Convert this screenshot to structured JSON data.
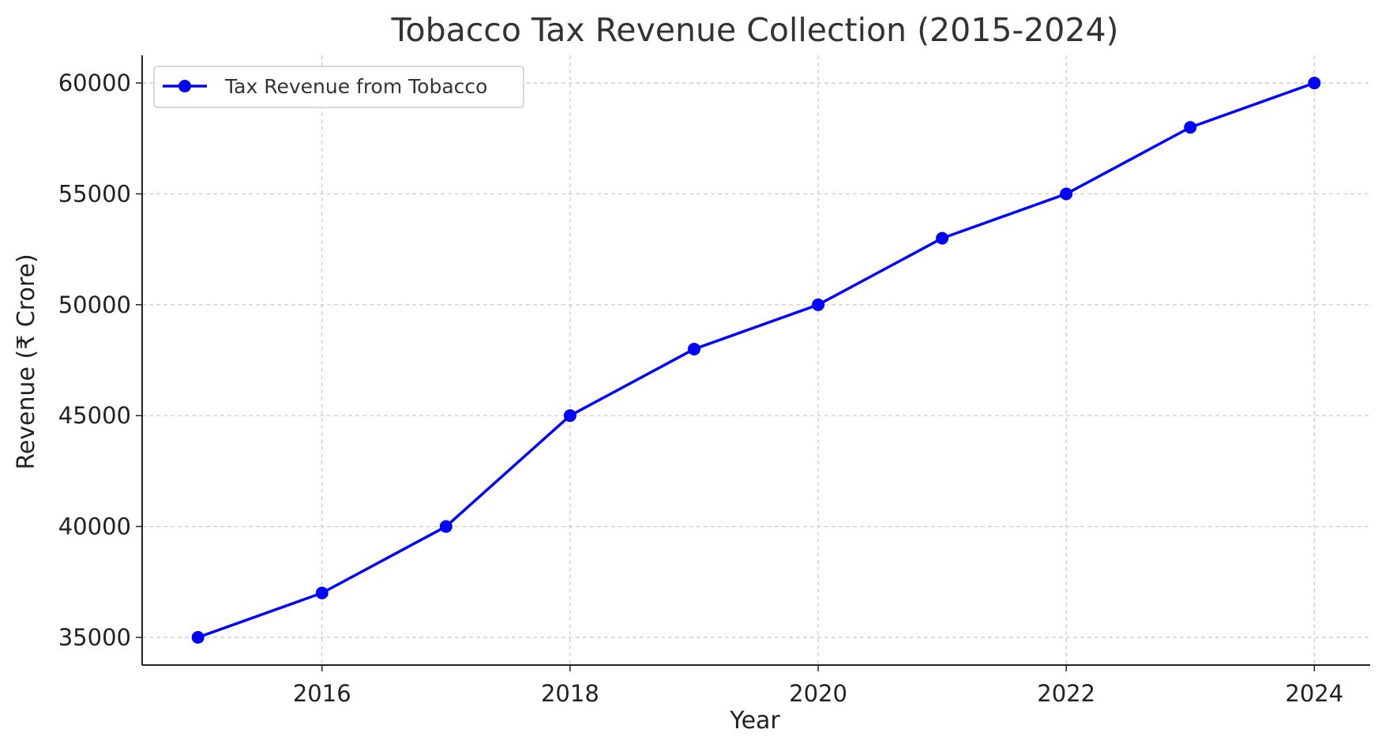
{
  "chart_data": {
    "type": "line",
    "title": "Tobacco Tax Revenue Collection (2015-2024)",
    "xlabel": "Year",
    "ylabel": "Revenue (₹ Crore)",
    "x": [
      2015,
      2016,
      2017,
      2018,
      2019,
      2020,
      2021,
      2022,
      2023,
      2024
    ],
    "series": [
      {
        "name": "Tax Revenue from Tobacco",
        "values": [
          35000,
          37000,
          40000,
          45000,
          48000,
          50000,
          53000,
          55000,
          58000,
          60000
        ],
        "color": "#0000ff",
        "marker": "circle"
      }
    ],
    "xlim": [
      2014.55,
      2024.45
    ],
    "ylim": [
      33750,
      61250
    ],
    "x_ticks": [
      2016,
      2018,
      2020,
      2022,
      2024
    ],
    "y_ticks": [
      35000,
      40000,
      45000,
      50000,
      55000,
      60000
    ],
    "grid": true,
    "legend_position": "top-left"
  }
}
